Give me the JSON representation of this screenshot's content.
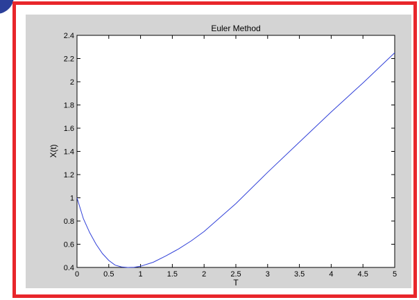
{
  "chart_data": {
    "type": "line",
    "title": "Euler Method",
    "xlabel": "T",
    "ylabel": "X(t)",
    "xlim": [
      0,
      5
    ],
    "ylim": [
      0.4,
      2.4
    ],
    "xticks": [
      "0",
      "0.5",
      "1",
      "1.5",
      "2",
      "2.5",
      "3",
      "3.5",
      "4",
      "4.5",
      "5"
    ],
    "yticks": [
      "0.4",
      "0.6",
      "0.8",
      "1",
      "1.2",
      "1.4",
      "1.6",
      "1.8",
      "2",
      "2.2",
      "2.4"
    ],
    "grid": false,
    "series": [
      {
        "color": "#2f3fd8",
        "x": [
          0,
          0.1,
          0.2,
          0.3,
          0.4,
          0.5,
          0.6,
          0.7,
          0.8,
          0.9,
          1.0,
          1.2,
          1.4,
          1.6,
          1.8,
          2.0,
          2.5,
          3.0,
          3.5,
          4.0,
          4.5,
          5.0
        ],
        "y": [
          1.0,
          0.82,
          0.7,
          0.6,
          0.52,
          0.46,
          0.42,
          0.405,
          0.4,
          0.402,
          0.41,
          0.445,
          0.5,
          0.56,
          0.63,
          0.71,
          0.95,
          1.22,
          1.48,
          1.74,
          1.99,
          2.25
        ]
      }
    ]
  },
  "colors": {
    "frame_border": "#e8262b",
    "figure_background": "#d4d4d4",
    "plot_background": "#ffffff",
    "corner_accent": "#2b3f9a"
  }
}
